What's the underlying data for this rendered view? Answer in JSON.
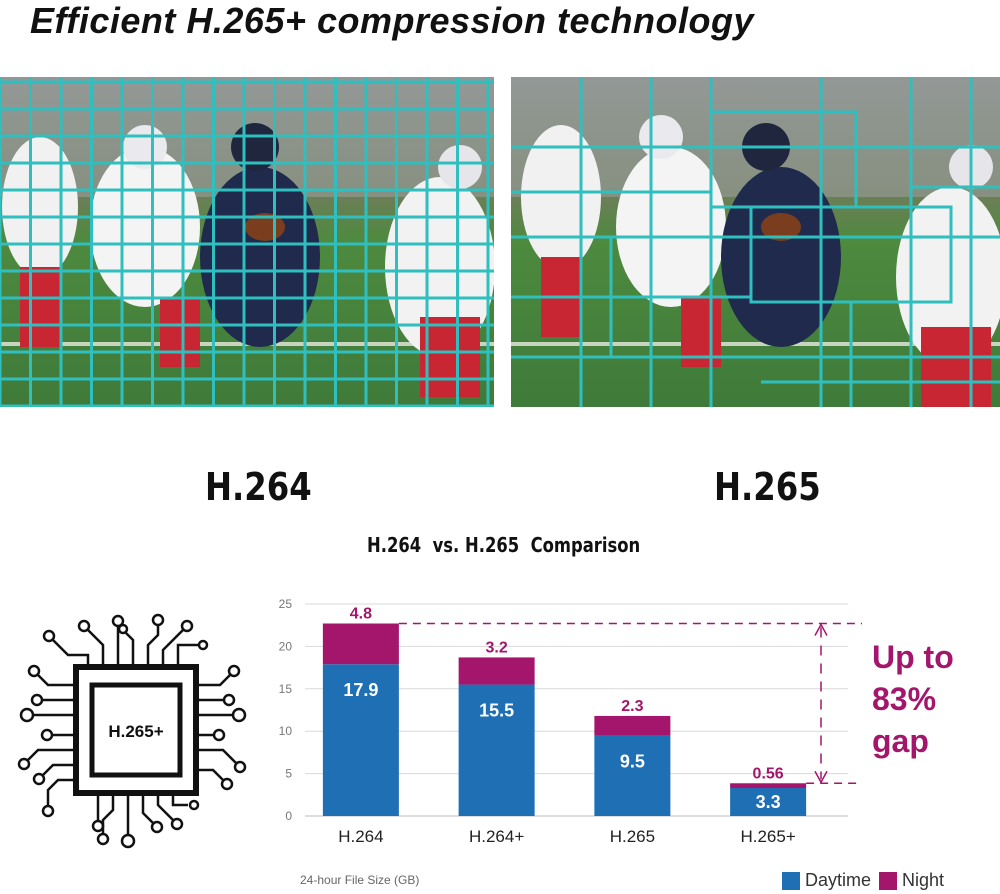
{
  "headline": "Efficient H.265+ compression technology",
  "codec_labels": {
    "left": "H.264",
    "right": "H.265"
  },
  "chip_label": "H.265+",
  "gap_text": [
    "Up to",
    "83%",
    "gap"
  ],
  "colors": {
    "daytime": "#1f6fb5",
    "night": "#a3166b",
    "grid": "#2fbfbf",
    "field": "#3f7a3a"
  },
  "chart_data": {
    "type": "bar",
    "stacked": true,
    "title": "H.264  vs. H.265  Comparison",
    "categories": [
      "H.264",
      "H.264+",
      "H.265",
      "H.265+"
    ],
    "series": [
      {
        "name": "Daytime",
        "values": [
          17.9,
          15.5,
          9.5,
          3.3
        ],
        "color": "#1f6fb5"
      },
      {
        "name": "Night",
        "values": [
          4.8,
          3.2,
          2.3,
          0.56
        ],
        "color": "#a3166b"
      }
    ],
    "ylim": [
      0,
      25
    ],
    "yticks": [
      "0",
      "5",
      "10",
      "15",
      "20",
      "25"
    ],
    "xlabel": "24-hour File Size (GB)",
    "grid": true,
    "legend": "bottom-right"
  }
}
